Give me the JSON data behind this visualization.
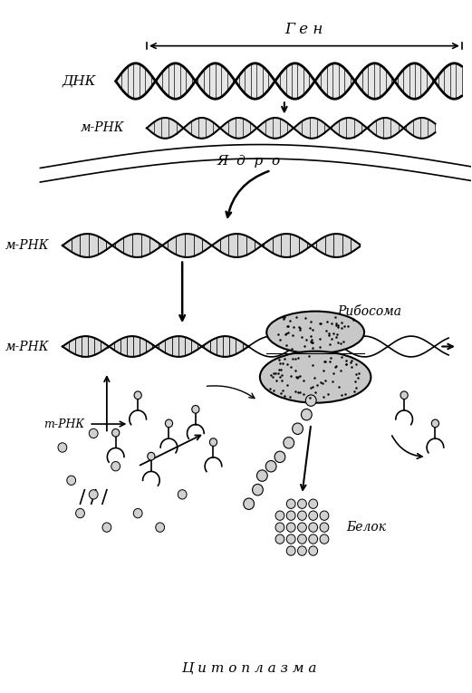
{
  "title": "",
  "background_color": "#ffffff",
  "text_color": "#000000",
  "labels": {
    "gen": "Г е н",
    "dnk": "ДНК",
    "mrna_top": "м-РНК",
    "yadro": "Я  д  р  о",
    "mrna_mid": "м-РНК",
    "mrna_bot": "м-РНК",
    "ribosome": "Рибосома",
    "trna": "т-РНК",
    "belok": "Белок",
    "cytoplasm": "Ц и т о п л а з м а"
  },
  "figsize": [
    5.21,
    7.65
  ],
  "dpi": 100
}
